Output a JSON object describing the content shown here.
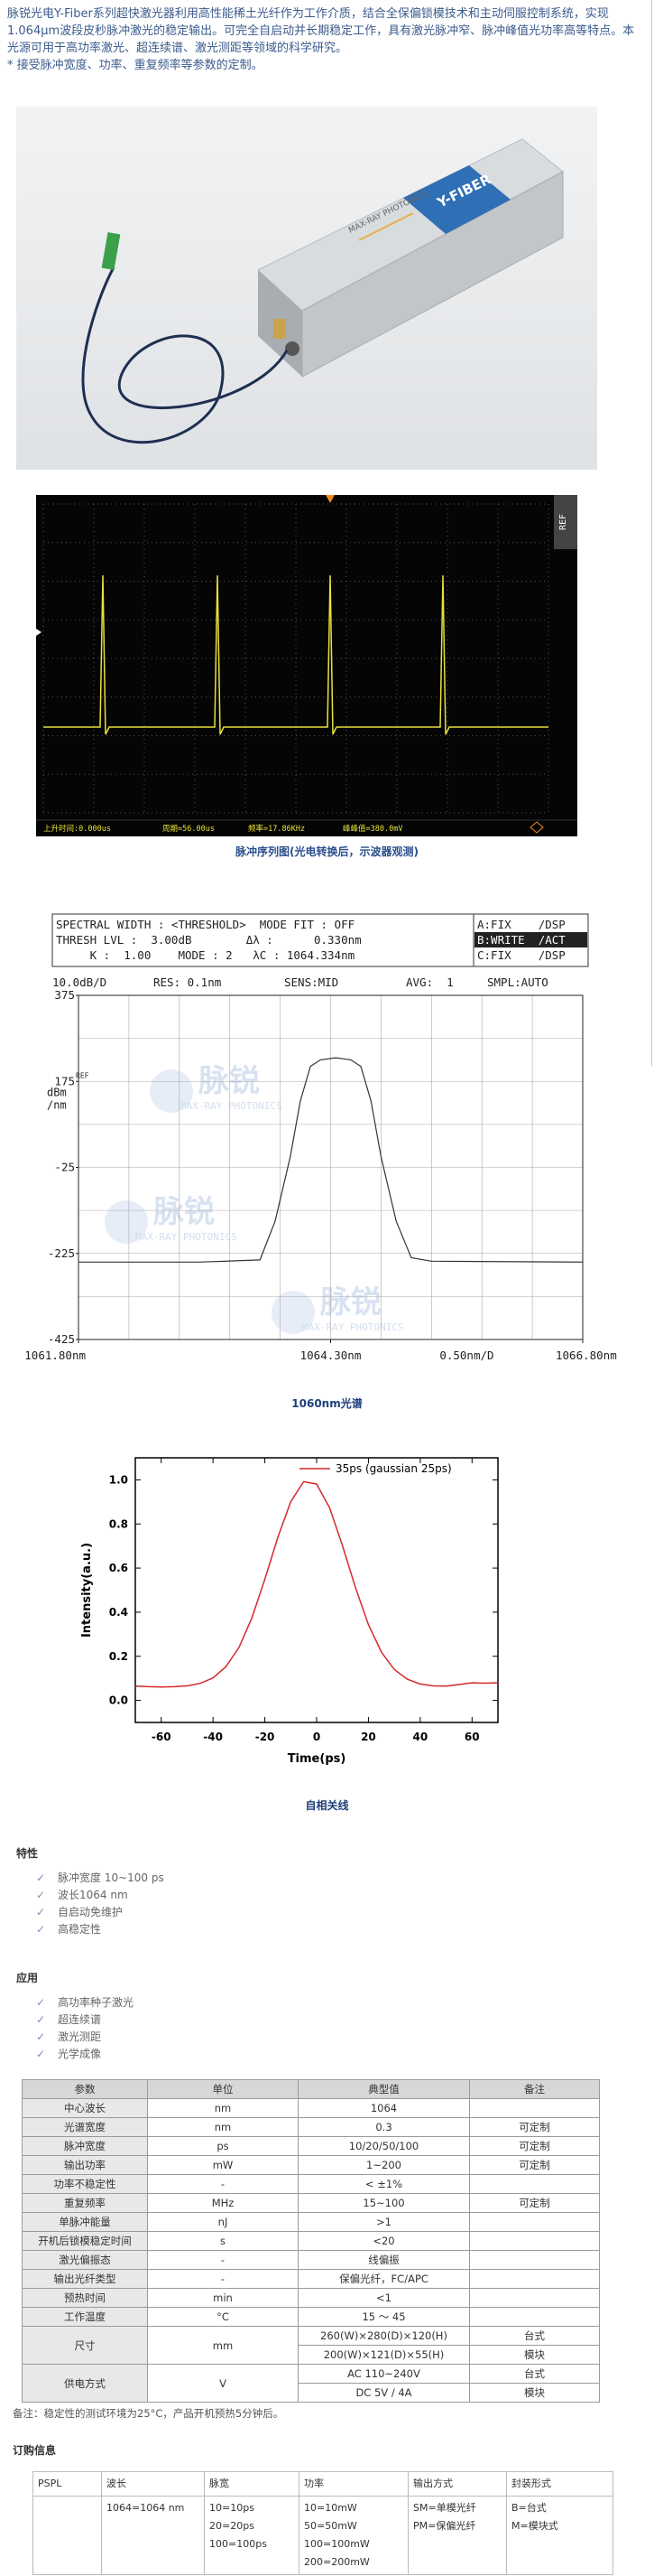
{
  "intro": {
    "text": "脉锐光电Y-Fiber系列超快激光器利用高性能稀土光纤作为工作介质，结合全保偏锁模技术和主动伺服控制系统，实现1.064μm波段皮秒脉冲激光的稳定输出。可完全自启动并长期稳定工作，具有激光脉冲窄、脉冲峰值光功率高等特点。本光源可用于高功率激光、超连续谱、激光测距等领域的科学研究。",
    "custom_note": "* 接受脉冲宽度、功率、重复频率等参数的定制。"
  },
  "product_photo": {
    "brand": "MAX-RAY PHOTONICS",
    "model": "Y-FIBER"
  },
  "pulse_train": {
    "tab": "REF",
    "status": [
      "上升时间:0.000us",
      "周期=56.00us",
      "频率=17.86KHz",
      "峰峰值=380.0mV"
    ],
    "caption": "脉冲序列图(光电转换后，示波器观测)"
  },
  "chart_data": [
    {
      "type": "line",
      "header": [
        "SPECTRAL WIDTH : <THRESHOLD>  MODE FIT : OFF",
        "THRESH LVL :  3.00dB        Δλ :      0.330nm",
        "     K :  1.00    MODE : 2   λC : 1064.334nm"
      ],
      "trace_states": [
        "A:FIX    /DSP",
        "B:WRITE  /ACT",
        "C:FIX    /DSP"
      ],
      "settings": [
        "10.0dB/D",
        "RES: 0.1nm",
        "SENS:MID",
        "AVG:  1",
        "SMPL:AUTO"
      ],
      "ref_label": "REF",
      "y_unit": [
        "dBm",
        "/nm"
      ],
      "x_scale_label": "0.50nm/D",
      "watermark": [
        "脉锐",
        "MAX-RAY PHOTONICS"
      ],
      "xlim": [
        1061.8,
        1066.8
      ],
      "xticks": [
        {
          "value": 1061.8,
          "label": "1061.80nm"
        },
        {
          "value": 1064.3,
          "label": "1064.30nm"
        },
        {
          "value": 1066.8,
          "label": "1066.80nm"
        }
      ],
      "ylim": [
        -425,
        375
      ],
      "yticks": [
        375,
        175,
        -25,
        -225,
        -425
      ],
      "x": [
        1061.8,
        1063.0,
        1063.6,
        1063.75,
        1063.9,
        1064.0,
        1064.1,
        1064.2,
        1064.35,
        1064.5,
        1064.6,
        1064.7,
        1064.8,
        1064.95,
        1065.1,
        1065.3,
        1066.8
      ],
      "values": [
        -245,
        -245,
        -240,
        -150,
        0,
        130,
        210,
        225,
        230,
        225,
        210,
        130,
        0,
        -150,
        -235,
        -243,
        -245
      ],
      "color": "#333333",
      "caption": "1060nm光谱"
    },
    {
      "type": "line",
      "x": [
        -70,
        -65,
        -60,
        -55,
        -50,
        -45,
        -40,
        -35,
        -30,
        -25,
        -20,
        -15,
        -10,
        -5,
        0,
        5,
        10,
        15,
        20,
        25,
        30,
        35,
        40,
        45,
        50,
        55,
        60,
        65,
        70
      ],
      "series": [
        {
          "name": "35ps (gaussian 25ps)",
          "color": "#d42a2a",
          "values": [
            0.065,
            0.062,
            0.061,
            0.062,
            0.066,
            0.077,
            0.102,
            0.153,
            0.24,
            0.374,
            0.549,
            0.738,
            0.901,
            0.992,
            0.981,
            0.873,
            0.701,
            0.511,
            0.344,
            0.219,
            0.14,
            0.096,
            0.074,
            0.066,
            0.065,
            0.072,
            0.08,
            0.078,
            0.08
          ]
        }
      ],
      "xlim": [
        -70,
        70
      ],
      "xticks": [
        -60,
        -40,
        -20,
        0,
        20,
        40,
        60
      ],
      "ylim": [
        -0.1,
        1.1
      ],
      "yticks": [
        {
          "value": 0,
          "label": "0.0"
        },
        0.2,
        0.4,
        0.6,
        0.8,
        {
          "value": 1,
          "label": "1.0"
        }
      ],
      "xlabel": "Time(ps)",
      "ylabel": "Intensity(a.u.)",
      "legend": "upper right",
      "caption": "自相关线"
    }
  ],
  "features": {
    "title": "特性",
    "items": [
      "脉冲宽度 10~100 ps",
      "波长1064 nm",
      "自启动免维护",
      "高稳定性"
    ]
  },
  "applications": {
    "title": "应用",
    "items": [
      "高功率种子激光",
      "超连续谱",
      "激光测距",
      "光学成像"
    ]
  },
  "spec_table": {
    "header": [
      "参数",
      "单位",
      "典型值",
      "备注"
    ],
    "rows": [
      [
        "中心波长",
        "nm",
        "1064",
        null
      ],
      [
        "光谱宽度",
        "nm",
        "0.3",
        "可定制"
      ],
      [
        "脉冲宽度",
        "ps",
        "10/20/50/100",
        "可定制"
      ],
      [
        "输出功率",
        "mW",
        "1~200",
        "可定制"
      ],
      [
        "功率不稳定性",
        "-",
        "< ±1%",
        null
      ],
      [
        "重复频率",
        "MHz",
        "15~100",
        "可定制"
      ],
      [
        "单脉冲能量",
        "nJ",
        ">1",
        null
      ],
      [
        "开机后锁模稳定时间",
        "s",
        "<20",
        null
      ],
      [
        "激光偏振态",
        "-",
        "线偏振",
        null
      ],
      [
        "输出光纤类型",
        "-",
        "保偏光纤，FC/APC",
        null
      ],
      [
        "预热时间",
        "min",
        "<1",
        null
      ],
      [
        "工作温度",
        "°C",
        "15 ～ 45",
        null
      ],
      [
        "尺寸",
        "mm",
        [
          "260(W)×280(D)×120(H)",
          "200(W)×121(D)×55(H)"
        ],
        [
          "台式",
          "模块"
        ]
      ],
      [
        "供电方式",
        "V",
        [
          "AC 110~240V",
          "DC 5V / 4A"
        ],
        [
          "台式",
          "模块"
        ]
      ]
    ]
  },
  "note": "备注：稳定性的测试环境为25°C，产品开机预热5分钟后。",
  "ordering": {
    "title": "订购信息",
    "header": [
      "PSPL",
      "波长",
      "脉宽",
      "功率",
      "输出方式",
      "封装形式"
    ],
    "rows": [
      [
        null,
        [
          "1064=1064 nm"
        ],
        [
          "10=10ps",
          "20=20ps",
          "100=100ps"
        ],
        [
          "10=10mW",
          "50=50mW",
          "100=100mW",
          "200=200mW"
        ],
        [
          "SM=单模光纤",
          "PM=保偏光纤"
        ],
        [
          "B=台式",
          "M=模块式"
        ]
      ]
    ]
  }
}
